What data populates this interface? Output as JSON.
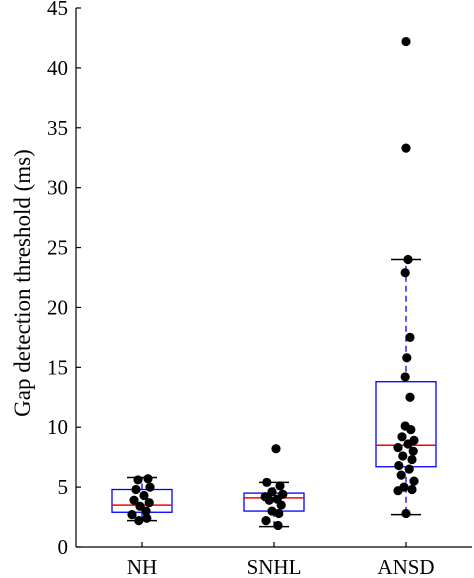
{
  "chart_data": {
    "type": "box",
    "title": "",
    "xlabel": "",
    "ylabel": "Gap detection threshold (ms)",
    "ylim": [
      0,
      45
    ],
    "yticks": [
      0,
      5,
      10,
      15,
      20,
      25,
      30,
      35,
      40,
      45
    ],
    "grid": false,
    "legend": "none",
    "categories": [
      "NH",
      "SNHL",
      "ANSD"
    ],
    "colors": {
      "box": "#0000ff",
      "median": "#ff0000",
      "whisker": "#0000ff",
      "cap": "#000000",
      "points": "#000000",
      "axis": "#000000"
    },
    "groups": [
      {
        "name": "NH",
        "q1": 2.9,
        "median": 3.5,
        "q3": 4.8,
        "whisker_low": 2.2,
        "whisker_high": 5.8,
        "points": [
          {
            "y": 5.7,
            "j": 0.15
          },
          {
            "y": 5.6,
            "j": -0.1
          },
          {
            "y": 5.0,
            "j": 0.2
          },
          {
            "y": 4.8,
            "j": -0.15
          },
          {
            "y": 4.3,
            "j": 0.05
          },
          {
            "y": 3.9,
            "j": -0.2
          },
          {
            "y": 3.7,
            "j": 0.18
          },
          {
            "y": 3.4,
            "j": -0.05
          },
          {
            "y": 3.0,
            "j": 0.1
          },
          {
            "y": 2.7,
            "j": -0.25
          },
          {
            "y": 2.4,
            "j": 0.12
          },
          {
            "y": 2.2,
            "j": -0.08
          }
        ]
      },
      {
        "name": "SNHL",
        "q1": 3.0,
        "median": 4.1,
        "q3": 4.5,
        "whisker_low": 1.7,
        "whisker_high": 5.4,
        "points": [
          {
            "y": 8.2,
            "j": 0.05
          },
          {
            "y": 5.4,
            "j": -0.18
          },
          {
            "y": 5.1,
            "j": 0.15
          },
          {
            "y": 4.6,
            "j": -0.05
          },
          {
            "y": 4.4,
            "j": 0.22
          },
          {
            "y": 4.2,
            "j": -0.22
          },
          {
            "y": 4.0,
            "j": 0.08
          },
          {
            "y": 3.9,
            "j": -0.12
          },
          {
            "y": 3.5,
            "j": 0.18
          },
          {
            "y": 3.0,
            "j": -0.05
          },
          {
            "y": 2.8,
            "j": 0.12
          },
          {
            "y": 2.2,
            "j": -0.2
          },
          {
            "y": 1.8,
            "j": 0.1
          }
        ]
      },
      {
        "name": "ANSD",
        "q1": 6.7,
        "median": 8.5,
        "q3": 13.8,
        "whisker_low": 2.7,
        "whisker_high": 24.0,
        "points": [
          {
            "y": 42.2,
            "j": 0.0
          },
          {
            "y": 33.3,
            "j": 0.0
          },
          {
            "y": 24.0,
            "j": 0.05
          },
          {
            "y": 22.9,
            "j": -0.02
          },
          {
            "y": 17.5,
            "j": 0.1
          },
          {
            "y": 15.8,
            "j": 0.02
          },
          {
            "y": 14.2,
            "j": -0.02
          },
          {
            "y": 12.5,
            "j": 0.1
          },
          {
            "y": 10.1,
            "j": -0.02
          },
          {
            "y": 9.8,
            "j": 0.12
          },
          {
            "y": 9.2,
            "j": -0.1
          },
          {
            "y": 8.9,
            "j": 0.2
          },
          {
            "y": 8.6,
            "j": 0.05
          },
          {
            "y": 8.3,
            "j": -0.2
          },
          {
            "y": 8.0,
            "j": 0.18
          },
          {
            "y": 7.6,
            "j": -0.08
          },
          {
            "y": 7.3,
            "j": 0.15
          },
          {
            "y": 6.8,
            "j": -0.18
          },
          {
            "y": 6.5,
            "j": 0.08
          },
          {
            "y": 6.0,
            "j": -0.12
          },
          {
            "y": 5.5,
            "j": 0.2
          },
          {
            "y": 5.0,
            "j": -0.05
          },
          {
            "y": 4.8,
            "j": 0.15
          },
          {
            "y": 4.7,
            "j": -0.2
          },
          {
            "y": 2.8,
            "j": 0.0
          }
        ]
      }
    ]
  }
}
